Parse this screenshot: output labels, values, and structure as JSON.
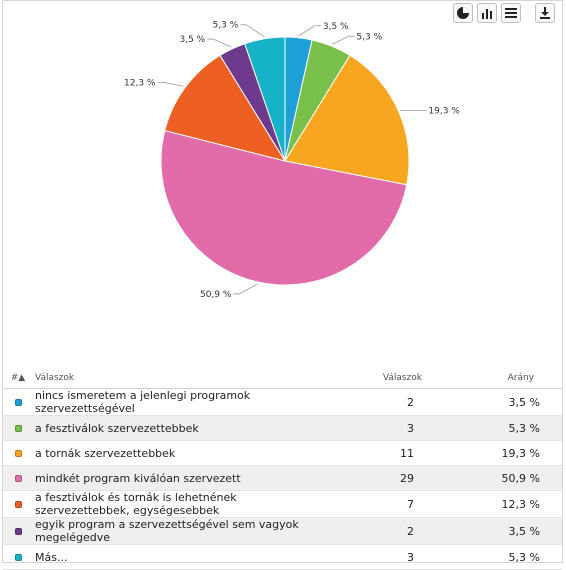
{
  "toolbar": {
    "buttons": [
      {
        "name": "pie-chart-view-button",
        "icon": "pie-icon"
      },
      {
        "name": "bar-chart-view-button",
        "icon": "bar-chart-icon"
      },
      {
        "name": "table-view-button",
        "icon": "table-icon"
      },
      {
        "name": "download-button",
        "icon": "download-icon"
      }
    ]
  },
  "table": {
    "headers": {
      "index": "#▲",
      "answers": "Válaszok",
      "count": "Válaszok",
      "ratio": "Arány"
    },
    "rows": [
      {
        "color": "#1f9fd8",
        "label": "nincs ismeretem a jelenlegi programok szervezettségével",
        "count": "2",
        "ratio": "3,5 %"
      },
      {
        "color": "#78c04a",
        "label": "a fesztiválok szervezettebbek",
        "count": "3",
        "ratio": "5,3 %"
      },
      {
        "color": "#f8a51f",
        "label": "a tornák szervezettebbek",
        "count": "11",
        "ratio": "19,3 %"
      },
      {
        "color": "#e26ca9",
        "label": "mindkét program kiválóan szervezett",
        "count": "29",
        "ratio": "50,9 %"
      },
      {
        "color": "#ee5f24",
        "label": "a fesztiválok és tornák is lehetnének szervezettebbek, egységesebbek",
        "count": "7",
        "ratio": "12,3 %"
      },
      {
        "color": "#6e3a8e",
        "label": "egyik program a szervezettségével sem vagyok megelégedve",
        "count": "2",
        "ratio": "3,5 %"
      },
      {
        "color": "#16b2c7",
        "label": "Más...",
        "count": "3",
        "ratio": "5,3 %"
      }
    ]
  },
  "chart_data": {
    "type": "pie",
    "categories": [
      "nincs ismeretem a jelenlegi programok szervezettségével",
      "a fesztiválok szervezettebbek",
      "a tornák szervezettebbek",
      "mindkét program kiválóan szervezett",
      "a fesztiválok és tornák is lehetnének szervezettebbek, egységesebbek",
      "egyik program a szervezettségével sem vagyok megelégedve",
      "Más..."
    ],
    "values": [
      2,
      3,
      11,
      29,
      7,
      2,
      3
    ],
    "labels": [
      "3,5 %",
      "5,3 %",
      "19,3 %",
      "50,9 %",
      "12,3 %",
      "3,5 %",
      "5,3 %"
    ],
    "colors": [
      "#1f9fd8",
      "#78c04a",
      "#f8a51f",
      "#e26ca9",
      "#ee5f24",
      "#6e3a8e",
      "#16b2c7"
    ],
    "start": "12 o'clock, clockwise"
  }
}
